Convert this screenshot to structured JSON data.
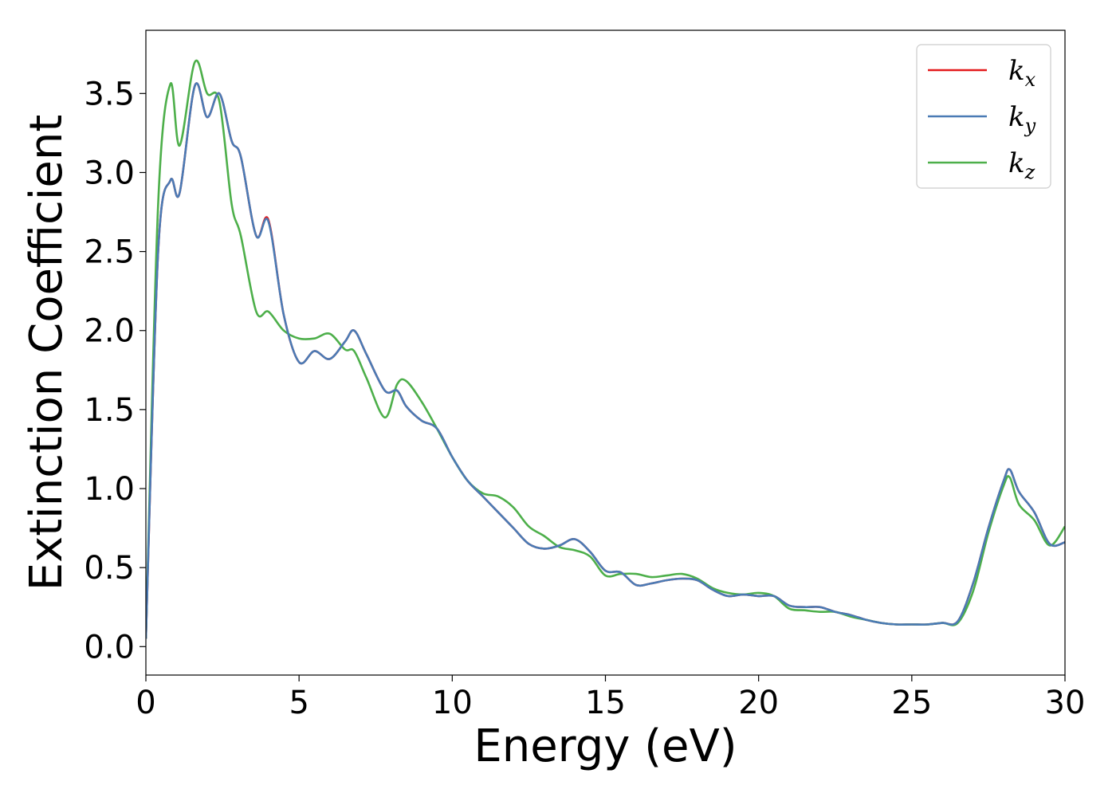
{
  "chart_data": {
    "type": "line",
    "xlabel": "Energy (eV)",
    "ylabel": "Extinction Coefficient",
    "xlim": [
      0,
      30
    ],
    "ylim": [
      -0.18,
      3.9
    ],
    "xticks": [
      0,
      5,
      10,
      15,
      20,
      25,
      30
    ],
    "xtick_labels": [
      "0",
      "5",
      "10",
      "15",
      "20",
      "25",
      "30"
    ],
    "yticks": [
      0.0,
      0.5,
      1.0,
      1.5,
      2.0,
      2.5,
      3.0,
      3.5
    ],
    "ytick_labels": [
      "0.0",
      "0.5",
      "1.0",
      "1.5",
      "2.0",
      "2.5",
      "3.0",
      "3.5"
    ],
    "grid": false,
    "legend_position": "top-right",
    "series": [
      {
        "name": "k",
        "subscript": "x",
        "color": "#e41a1c",
        "x": [
          0,
          0.4,
          0.8,
          1.1,
          1.6,
          2.0,
          2.4,
          2.8,
          3.1,
          3.6,
          4.0,
          4.5,
          5.0,
          5.5,
          6.0,
          6.5,
          6.8,
          7.2,
          7.8,
          8.2,
          8.5,
          9.0,
          9.5,
          10.0,
          10.5,
          11.0,
          11.5,
          12.0,
          12.5,
          13.0,
          13.5,
          14.0,
          14.5,
          15.0,
          15.5,
          16.0,
          16.5,
          17.0,
          17.5,
          18.0,
          18.5,
          19.0,
          19.5,
          20.0,
          20.5,
          21.0,
          21.5,
          22.0,
          22.5,
          23.0,
          23.5,
          24.0,
          24.5,
          25.0,
          25.5,
          26.0,
          26.5,
          27.0,
          27.5,
          28.0,
          28.2,
          28.5,
          29.0,
          29.5,
          30.0
        ],
        "y": [
          0.05,
          2.5,
          2.95,
          2.87,
          3.55,
          3.35,
          3.5,
          3.2,
          3.1,
          2.6,
          2.7,
          2.1,
          1.8,
          1.87,
          1.82,
          1.93,
          2.0,
          1.85,
          1.62,
          1.62,
          1.52,
          1.43,
          1.38,
          1.2,
          1.05,
          0.95,
          0.85,
          0.75,
          0.65,
          0.62,
          0.64,
          0.68,
          0.6,
          0.48,
          0.47,
          0.39,
          0.4,
          0.42,
          0.43,
          0.42,
          0.36,
          0.32,
          0.33,
          0.32,
          0.32,
          0.26,
          0.25,
          0.25,
          0.22,
          0.2,
          0.17,
          0.15,
          0.14,
          0.14,
          0.14,
          0.15,
          0.16,
          0.4,
          0.75,
          1.05,
          1.12,
          0.98,
          0.85,
          0.65,
          0.66
        ]
      },
      {
        "name": "k",
        "subscript": "y",
        "color": "#4a7bb5",
        "x": [
          0,
          0.4,
          0.8,
          1.1,
          1.6,
          2.0,
          2.4,
          2.8,
          3.1,
          3.6,
          4.0,
          4.5,
          5.0,
          5.5,
          6.0,
          6.5,
          6.8,
          7.2,
          7.8,
          8.2,
          8.5,
          9.0,
          9.5,
          10.0,
          10.5,
          11.0,
          11.5,
          12.0,
          12.5,
          13.0,
          13.5,
          14.0,
          14.5,
          15.0,
          15.5,
          16.0,
          16.5,
          17.0,
          17.5,
          18.0,
          18.5,
          19.0,
          19.5,
          20.0,
          20.5,
          21.0,
          21.5,
          22.0,
          22.5,
          23.0,
          23.5,
          24.0,
          24.5,
          25.0,
          25.5,
          26.0,
          26.5,
          27.0,
          27.5,
          28.0,
          28.2,
          28.5,
          29.0,
          29.5,
          30.0
        ],
        "y": [
          0.05,
          2.5,
          2.95,
          2.87,
          3.55,
          3.35,
          3.5,
          3.2,
          3.1,
          2.6,
          2.69,
          2.1,
          1.8,
          1.87,
          1.82,
          1.93,
          2.0,
          1.85,
          1.62,
          1.62,
          1.52,
          1.43,
          1.38,
          1.2,
          1.05,
          0.95,
          0.85,
          0.75,
          0.65,
          0.62,
          0.64,
          0.68,
          0.6,
          0.48,
          0.47,
          0.39,
          0.4,
          0.42,
          0.43,
          0.42,
          0.36,
          0.32,
          0.33,
          0.32,
          0.32,
          0.26,
          0.25,
          0.25,
          0.22,
          0.2,
          0.17,
          0.15,
          0.14,
          0.14,
          0.14,
          0.15,
          0.16,
          0.4,
          0.75,
          1.05,
          1.12,
          0.98,
          0.85,
          0.65,
          0.66
        ]
      },
      {
        "name": "k",
        "subscript": "z",
        "color": "#4daf4a",
        "x": [
          0,
          0.4,
          0.8,
          1.1,
          1.6,
          2.0,
          2.4,
          2.8,
          3.1,
          3.6,
          4.0,
          4.5,
          5.0,
          5.5,
          6.0,
          6.5,
          6.8,
          7.2,
          7.8,
          8.2,
          8.5,
          9.0,
          9.5,
          10.0,
          10.5,
          11.0,
          11.5,
          12.0,
          12.5,
          13.0,
          13.5,
          14.0,
          14.5,
          15.0,
          15.5,
          16.0,
          16.5,
          17.0,
          17.5,
          18.0,
          18.5,
          19.0,
          19.5,
          20.0,
          20.5,
          21.0,
          21.5,
          22.0,
          22.5,
          23.0,
          23.5,
          24.0,
          24.5,
          25.0,
          25.5,
          26.0,
          26.5,
          27.0,
          27.5,
          28.0,
          28.2,
          28.5,
          29.0,
          29.5,
          30.0
        ],
        "y": [
          0.05,
          2.8,
          3.56,
          3.17,
          3.7,
          3.5,
          3.45,
          2.8,
          2.6,
          2.12,
          2.12,
          2.0,
          1.95,
          1.95,
          1.98,
          1.88,
          1.87,
          1.7,
          1.45,
          1.66,
          1.68,
          1.55,
          1.38,
          1.2,
          1.05,
          0.97,
          0.95,
          0.88,
          0.76,
          0.7,
          0.63,
          0.61,
          0.57,
          0.45,
          0.46,
          0.46,
          0.44,
          0.45,
          0.46,
          0.43,
          0.37,
          0.34,
          0.33,
          0.34,
          0.32,
          0.24,
          0.23,
          0.22,
          0.22,
          0.19,
          0.17,
          0.15,
          0.14,
          0.14,
          0.14,
          0.15,
          0.15,
          0.35,
          0.72,
          1.02,
          1.07,
          0.9,
          0.8,
          0.64,
          0.76
        ]
      }
    ]
  }
}
